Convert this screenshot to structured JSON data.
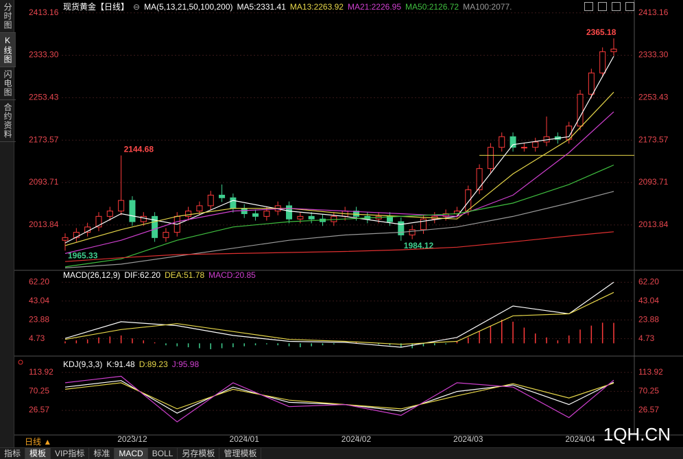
{
  "sidebar": [
    "分时图",
    "K线图",
    "闪电图",
    "合约资料"
  ],
  "toolbar": {
    "period": "日线 ▲",
    "tabs": [
      "指标",
      "模板",
      "VIP指标",
      "标准",
      "MACD",
      "BOLL",
      "另存模板",
      "管理模板"
    ]
  },
  "watermark": "1QH.CN",
  "chart_data": [
    {
      "type": "candlestick",
      "title": "现货黄金【日线】",
      "ma_legend": "MA(5,13,21,50,100,200)",
      "up_color": "#ff3b3b",
      "down_color": "#3fcf8f",
      "grid": true,
      "ylim": [
        1931,
        2427
      ],
      "yticks": [
        2013.84,
        2093.71,
        2173.57,
        2253.43,
        {
          "value": 2333.3,
          "label": "2333.30"
        },
        2413.16
      ],
      "open": [
        1985,
        1990,
        2000,
        2010,
        2030,
        2040,
        2060,
        2020,
        2030,
        1990,
        2000,
        2030,
        2040,
        2050,
        2070,
        2065,
        2045,
        2035,
        2030,
        2040,
        2050,
        2025,
        2030,
        2025,
        2020,
        2030,
        2040,
        2030,
        2025,
        2030,
        2020,
        1995,
        2005,
        2025,
        2030,
        2035,
        2040,
        2080,
        2120,
        2160,
        2180,
        2160,
        2160,
        2170,
        2180,
        2175,
        2200,
        2260,
        2300,
        2340
      ],
      "high": [
        1998,
        2008,
        2018,
        2038,
        2048,
        2144.68,
        2068,
        2038,
        2038,
        2008,
        2038,
        2048,
        2058,
        2078,
        2090,
        2073,
        2053,
        2043,
        2048,
        2058,
        2058,
        2038,
        2038,
        2033,
        2038,
        2048,
        2048,
        2038,
        2038,
        2038,
        2028,
        2013,
        2033,
        2038,
        2043,
        2048,
        2088,
        2128,
        2168,
        2188,
        2188,
        2168,
        2178,
        2218,
        2188,
        2208,
        2268,
        2308,
        2348,
        2365.18
      ],
      "low": [
        1965.33,
        1982,
        1992,
        2002,
        2022,
        2032,
        2012,
        2012,
        1982,
        1982,
        1992,
        2022,
        2032,
        2042,
        2057,
        2037,
        2027,
        2022,
        2022,
        2032,
        2017,
        2017,
        2017,
        2012,
        2012,
        2022,
        2022,
        2017,
        2017,
        2012,
        1984.12,
        1987,
        1997,
        2017,
        2022,
        2027,
        2032,
        2072,
        2112,
        2152,
        2152,
        2152,
        2152,
        2162,
        2167,
        2167,
        2192,
        2252,
        2292,
        2332
      ],
      "close": [
        1990,
        2000,
        2010,
        2030,
        2040,
        2060,
        2020,
        2030,
        1990,
        2000,
        2030,
        2040,
        2050,
        2070,
        2065,
        2045,
        2035,
        2030,
        2040,
        2050,
        2025,
        2030,
        2025,
        2020,
        2030,
        2040,
        2030,
        2025,
        2030,
        2020,
        1995,
        2005,
        2025,
        2030,
        2035,
        2040,
        2080,
        2120,
        2160,
        2180,
        2160,
        2160,
        2170,
        2180,
        2175,
        2200,
        2260,
        2300,
        2340,
        2345
      ],
      "labeled_highs": [
        5,
        49
      ],
      "labeled_lows": [
        0,
        30
      ],
      "hline": 2145,
      "hline_color": "#e8d84a",
      "series": [
        {
          "name": "MA5:2331.41",
          "color": "#ffffff",
          "x": [
            0,
            5,
            10,
            15,
            20,
            25,
            30,
            35,
            40,
            45,
            49
          ],
          "values": [
            1980,
            2035,
            2015,
            2060,
            2040,
            2030,
            2015,
            2030,
            2165,
            2180,
            2331.41
          ]
        },
        {
          "name": "MA13:2263.92",
          "color": "#e8d84a",
          "x": [
            0,
            5,
            10,
            15,
            20,
            25,
            30,
            35,
            40,
            45,
            49
          ],
          "values": [
            1975,
            2005,
            2030,
            2045,
            2045,
            2035,
            2030,
            2025,
            2110,
            2175,
            2263.92
          ]
        },
        {
          "name": "MA21:2226.95",
          "color": "#d040d0",
          "x": [
            0,
            5,
            10,
            15,
            20,
            25,
            30,
            35,
            40,
            45,
            49
          ],
          "values": [
            1960,
            1985,
            2020,
            2040,
            2045,
            2040,
            2035,
            2030,
            2070,
            2150,
            2226.95
          ]
        },
        {
          "name": "MA50:2126.72",
          "color": "#40c040",
          "x": [
            0,
            5,
            10,
            15,
            20,
            25,
            30,
            35,
            40,
            45,
            49
          ],
          "values": [
            1935,
            1950,
            1985,
            2010,
            2020,
            2025,
            2030,
            2035,
            2055,
            2090,
            2126.72
          ]
        },
        {
          "name": "MA100:2077.",
          "color": "#9a9a9a",
          "x": [
            0,
            5,
            10,
            15,
            20,
            25,
            30,
            35,
            40,
            45,
            49
          ],
          "values": [
            1933,
            1940,
            1955,
            1970,
            1985,
            1995,
            2000,
            2010,
            2030,
            2055,
            2077
          ]
        },
        {
          "color": "#e03030",
          "x": [
            0,
            5,
            10,
            15,
            20,
            25,
            30,
            35,
            40,
            45,
            49
          ],
          "values": [
            1945,
            1952,
            1958,
            1960,
            1962,
            1964,
            1967,
            1972,
            1982,
            1993,
            2001
          ]
        }
      ]
    },
    {
      "type": "macd",
      "title": "MACD(26,12,9)",
      "grid": true,
      "ylim": [
        -11.6,
        72.2
      ],
      "yticks": [
        4.73,
        23.88,
        43.04,
        {
          "value": 62.2,
          "label": "62.20"
        }
      ],
      "series": [
        {
          "name": "DIF:62.20",
          "color": "#ffffff",
          "x": [
            0,
            5,
            10,
            15,
            20,
            25,
            30,
            35,
            40,
            45,
            49
          ],
          "values": [
            5,
            22,
            18,
            8,
            2,
            1,
            -4,
            6,
            38,
            30,
            62.2
          ]
        },
        {
          "name": "DEA:51.78",
          "color": "#e8d84a",
          "x": [
            0,
            5,
            10,
            15,
            20,
            25,
            30,
            35,
            40,
            45,
            49
          ],
          "values": [
            4,
            14,
            20,
            12,
            4,
            2,
            -1,
            2,
            28,
            30,
            51.78
          ]
        }
      ],
      "histogram": {
        "name": "MACD:20.85",
        "name_color": "#d040d0",
        "up_color": "#ff3b3b",
        "down_color": "#3fcf8f",
        "values": [
          2,
          3,
          4,
          6,
          7,
          8,
          5,
          3,
          1,
          -2,
          -3,
          -4,
          -5,
          -6,
          -5,
          -4,
          -3,
          -2,
          -1,
          -2,
          -3,
          -4,
          -3,
          -2,
          -1,
          0,
          1,
          0,
          -1,
          -2,
          -4,
          -5,
          -3,
          -2,
          -1,
          2,
          6,
          12,
          18,
          24,
          22,
          16,
          10,
          6,
          3,
          8,
          14,
          18,
          21,
          20.85
        ]
      }
    },
    {
      "type": "kdj",
      "title": "KDJ(9,3,3)",
      "grid": true,
      "ylim": [
        -27,
        123
      ],
      "yticks": [
        26.57,
        70.25,
        113.92
      ],
      "categories": [
        null,
        null,
        null,
        null,
        null,
        null,
        "2023/12",
        null,
        null,
        null,
        null,
        null,
        null,
        null,
        null,
        null,
        "2024/01",
        null,
        null,
        null,
        null,
        null,
        null,
        null,
        null,
        null,
        "2024/02",
        null,
        null,
        null,
        null,
        null,
        null,
        null,
        null,
        null,
        "2024/03",
        null,
        null,
        null,
        null,
        null,
        null,
        null,
        null,
        null,
        "2024/04",
        null,
        null,
        null
      ],
      "series": [
        {
          "name": "K:91.48",
          "color": "#ffffff",
          "x": [
            0,
            5,
            10,
            15,
            20,
            25,
            30,
            35,
            40,
            45,
            49
          ],
          "values": [
            80,
            95,
            20,
            80,
            45,
            40,
            25,
            70,
            85,
            40,
            91.48
          ]
        },
        {
          "name": "D:89.23",
          "color": "#e8d84a",
          "x": [
            0,
            5,
            10,
            15,
            20,
            25,
            30,
            35,
            40,
            45,
            49
          ],
          "values": [
            75,
            90,
            30,
            75,
            50,
            40,
            30,
            60,
            88,
            55,
            89.23
          ]
        },
        {
          "name": "J:95.98",
          "color": "#d040d0",
          "x": [
            0,
            5,
            10,
            15,
            20,
            25,
            30,
            35,
            40,
            45,
            49
          ],
          "values": [
            90,
            105,
            0,
            90,
            35,
            40,
            15,
            90,
            80,
            10,
            95.98
          ]
        }
      ]
    }
  ]
}
